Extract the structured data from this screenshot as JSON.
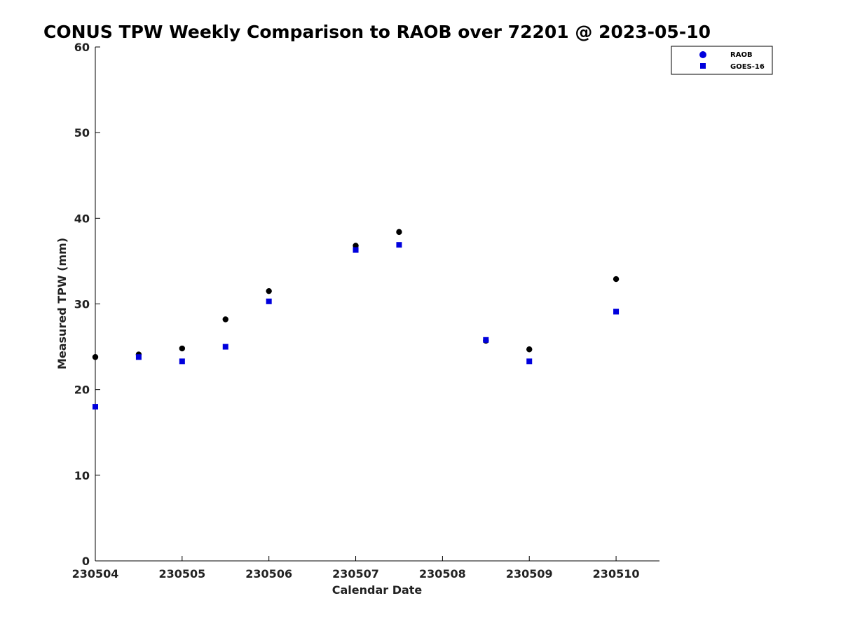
{
  "chart_data": {
    "type": "scatter",
    "title": "CONUS TPW Weekly Comparison to RAOB over 72201 @ 2023-05-10",
    "xlabel": "Calendar Date",
    "ylabel": "Measured TPW (mm)",
    "xlim": [
      "230504",
      "230510 12Z"
    ],
    "ylim": [
      0,
      60
    ],
    "x_ticks": [
      "230504",
      "230505",
      "230506",
      "230507",
      "230508",
      "230509",
      "230510"
    ],
    "y_ticks": [
      0,
      10,
      20,
      30,
      40,
      50,
      60
    ],
    "grid": false,
    "legend_position": "top-right",
    "series": [
      {
        "name": "RAOB",
        "marker": "circle",
        "color": "#000000",
        "x": [
          "230504 00Z",
          "230504 12Z",
          "230505 00Z",
          "230505 12Z",
          "230506 00Z",
          "230507 00Z",
          "230507 12Z",
          "230508 12Z",
          "230509 00Z",
          "230510 00Z"
        ],
        "y": [
          23.8,
          24.1,
          24.8,
          28.2,
          31.5,
          36.8,
          38.4,
          25.7,
          24.7,
          32.9
        ]
      },
      {
        "name": "GOES-16",
        "marker": "square",
        "color": "#0000dd",
        "x": [
          "230504 00Z",
          "230504 12Z",
          "230505 00Z",
          "230505 12Z",
          "230506 00Z",
          "230507 00Z",
          "230507 12Z",
          "230508 12Z",
          "230509 00Z",
          "230510 00Z"
        ],
        "y": [
          18.0,
          23.8,
          23.3,
          25.0,
          30.3,
          36.3,
          36.9,
          25.8,
          23.3,
          29.1
        ]
      }
    ]
  }
}
